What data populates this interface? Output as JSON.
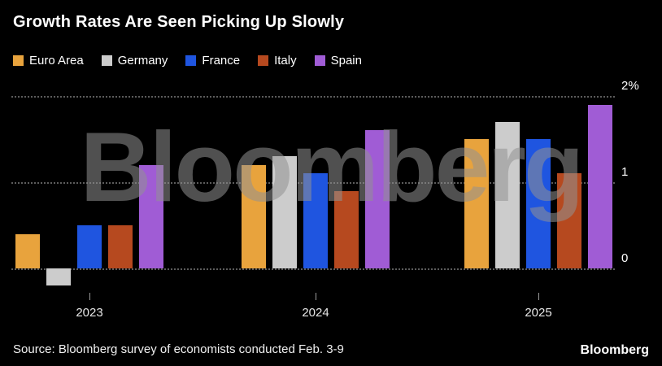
{
  "watermark": "Bloomberg",
  "source": "Source: Bloomberg survey of economists conducted Feb. 3-9",
  "logo": "Bloomberg",
  "colors": {
    "background": "#000000",
    "text": "#ffffff",
    "grid": "#5c5c5c"
  },
  "chart_data": {
    "type": "bar",
    "title": "Growth Rates Are Seen Picking Up Slowly",
    "categories": [
      "2023",
      "2024",
      "2025"
    ],
    "series": [
      {
        "name": "Euro Area",
        "color": "#E8A33D",
        "values": [
          0.4,
          1.2,
          1.5
        ]
      },
      {
        "name": "Germany",
        "color": "#CCCCCC",
        "values": [
          -0.2,
          1.3,
          1.7
        ]
      },
      {
        "name": "France",
        "color": "#1F55E0",
        "values": [
          0.5,
          1.1,
          1.5
        ]
      },
      {
        "name": "Italy",
        "color": "#B6491F",
        "values": [
          0.5,
          0.9,
          1.1
        ]
      },
      {
        "name": "Spain",
        "color": "#A05CD5",
        "values": [
          1.2,
          1.6,
          1.9
        ]
      }
    ],
    "yticks": [
      {
        "value": 2,
        "label": "2%"
      },
      {
        "value": 1,
        "label": "1"
      },
      {
        "value": 0,
        "label": "0"
      }
    ],
    "ylim": [
      -0.45,
      2.15
    ],
    "grid": "horizontal dotted",
    "legend_position": "top-left"
  }
}
